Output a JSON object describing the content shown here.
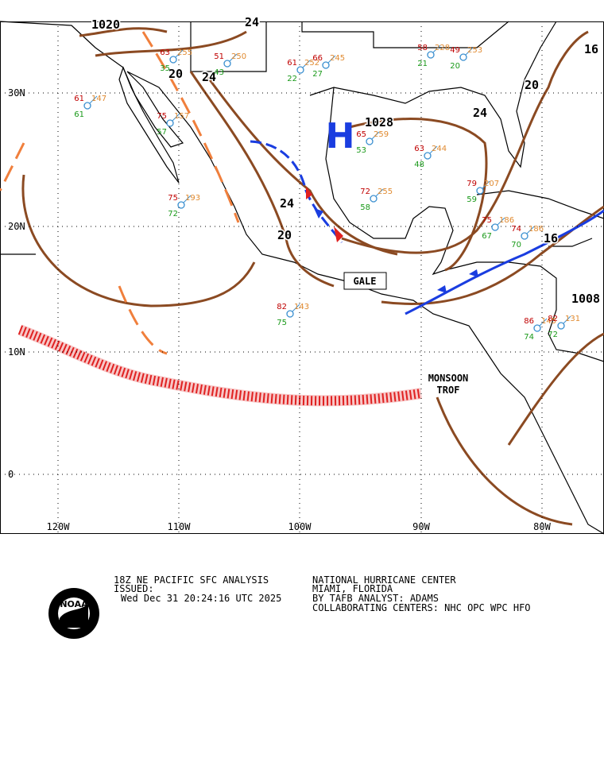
{
  "map": {
    "lat_labels": [
      "30N",
      "20N",
      "10N",
      "0"
    ],
    "lon_labels": [
      "120W",
      "110W",
      "100W",
      "90W",
      "80W"
    ],
    "isobar_labels": [
      "1020",
      "24",
      "20",
      "24",
      "1028",
      "24",
      "20",
      "24",
      "20",
      "16",
      "16",
      "1008"
    ],
    "high_label": "H",
    "features": [
      "GALE",
      "MONSOON",
      "TROF"
    ],
    "stations": [
      {
        "temp": "75",
        "pressure": "193",
        "dew": "72"
      },
      {
        "temp": "75",
        "pressure": "157",
        "dew": "57"
      },
      {
        "temp": "61",
        "pressure": "147",
        "dew": "61"
      },
      {
        "temp": "72",
        "pressure": "255",
        "dew": "58"
      },
      {
        "temp": "65",
        "pressure": "259",
        "dew": "53"
      },
      {
        "temp": "63",
        "pressure": "244",
        "dew": "48"
      },
      {
        "temp": "79",
        "pressure": "207",
        "dew": "59"
      },
      {
        "temp": "82",
        "pressure": "143",
        "dew": "75"
      },
      {
        "temp": "75",
        "pressure": "186",
        "dew": "67"
      },
      {
        "temp": "74",
        "pressure": "186",
        "dew": "70"
      },
      {
        "temp": "86",
        "pressure": "145",
        "dew": "74"
      },
      {
        "temp": "82",
        "pressure": "131",
        "dew": "72"
      },
      {
        "temp": "61",
        "pressure": "252",
        "dew": "22"
      },
      {
        "temp": "66",
        "pressure": "245",
        "dew": "27"
      },
      {
        "temp": "51",
        "pressure": "250",
        "dew": "43"
      },
      {
        "temp": "63",
        "pressure": "255",
        "dew": "35"
      },
      {
        "temp": "49",
        "pressure": "253",
        "dew": "20"
      },
      {
        "temp": "58",
        "pressure": "228",
        "dew": "21"
      }
    ]
  },
  "footer": {
    "product": "18Z NE PACIFIC SFC ANALYSIS",
    "issued": "ISSUED:",
    "time": "Wed Dec 31 20:24:16 UTC 2025",
    "center": "NATIONAL HURRICANE CENTER",
    "location": "MIAMI, FLORIDA",
    "analyst": "BY TAFB ANALYST: ADAMS",
    "collab": "COLLABORATING CENTERS: NHC OPC WPC HFO",
    "logo": "NOAA"
  }
}
